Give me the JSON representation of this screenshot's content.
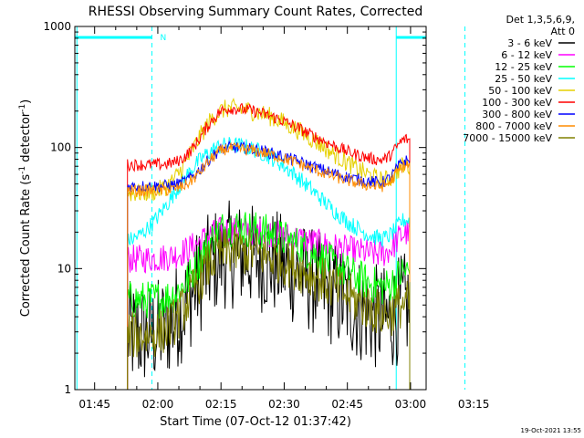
{
  "chart_data": {
    "type": "line",
    "title": "RHESSI Observing Summary Count Rates, Corrected",
    "xlabel": "Start Time (07-Oct-12 01:37:42)",
    "ylabel": "Corrected Count Rate (s",
    "ylabel_units": {
      "sup1": "-1",
      "mid": " detector",
      "sup2": "-1",
      "end": ")"
    },
    "y_scale": "log",
    "ylim": [
      1,
      1000
    ],
    "xlim_minutes": [
      -4.7,
      78.7
    ],
    "y_ticks": [
      {
        "value": 1,
        "label": "1"
      },
      {
        "value": 10,
        "label": "10"
      },
      {
        "value": 100,
        "label": "100"
      },
      {
        "value": 1000,
        "label": "1000"
      }
    ],
    "x_ticks": [
      {
        "minute": 0,
        "label": "01:45"
      },
      {
        "minute": 15,
        "label": "02:00"
      },
      {
        "minute": 30,
        "label": "02:15"
      },
      {
        "minute": 45,
        "label": "02:30"
      },
      {
        "minute": 60,
        "label": "02:45"
      },
      {
        "minute": 75,
        "label": "03:00"
      },
      {
        "minute": 90,
        "label": "03:15"
      }
    ],
    "legend": {
      "position": "outside-right",
      "header": "Det 1,3,5,6,9,",
      "subheader": "Att 0"
    },
    "series": [
      {
        "name": "3 - 6 keV",
        "color": "#000000",
        "base": 2.8,
        "peak": 13,
        "rise_min": 19,
        "fall_min": 61,
        "noise": 0.45
      },
      {
        "name": "6 - 12 keV",
        "color": "#ff00ff",
        "base": 12,
        "peak": 21,
        "rise_min": 19,
        "fall_min": 63,
        "noise": 0.12
      },
      {
        "name": "12 - 25 keV",
        "color": "#00ff00",
        "base": 5.5,
        "peak": 22,
        "rise_min": 16,
        "fall_min": 60,
        "noise": 0.16
      },
      {
        "name": "25 - 50 keV",
        "color": "#00ffff",
        "base": 15.5,
        "peak": 105,
        "rise_min": 26,
        "fall_min": 48,
        "noise": 0.07
      },
      {
        "name": "50 - 100 keV",
        "color": "#e6d000",
        "base": 42,
        "peak": 210,
        "rise_min": 18,
        "fall_min": 57,
        "noise": 0.08
      },
      {
        "name": "100 - 300 keV",
        "color": "#ff0000",
        "base": 72,
        "peak": 210,
        "rise_min": 15,
        "fall_min": 53,
        "noise": 0.05
      },
      {
        "name": "300 - 800 keV",
        "color": "#0000ff",
        "base": 48,
        "peak": 100,
        "rise_min": 15,
        "fall_min": 55,
        "noise": 0.05
      },
      {
        "name": "800 - 7000 keV",
        "color": "#ff8c00",
        "base": 44,
        "peak": 98,
        "rise_min": 15,
        "fall_min": 55,
        "noise": 0.05
      },
      {
        "name": "7000 - 15000 keV",
        "color": "#808000",
        "base": 2.8,
        "peak": 14,
        "rise_min": 18,
        "fall_min": 65,
        "noise": 0.2
      }
    ],
    "data_span_minutes": [
      7.8,
      74.8
    ],
    "peak_minute": 32,
    "end_bump_minute": 74.0,
    "annotations": {
      "orbit_bar_color": "#00ffff",
      "night_start_minute": 13.6,
      "night_end_minute": 71.6,
      "night_marker": "N",
      "orbit_lines_minutes": [
        -4.2,
        13.6,
        71.6,
        87.9
      ]
    }
  },
  "footer": {
    "timestamp": "19-Oct-2021 13:55"
  }
}
